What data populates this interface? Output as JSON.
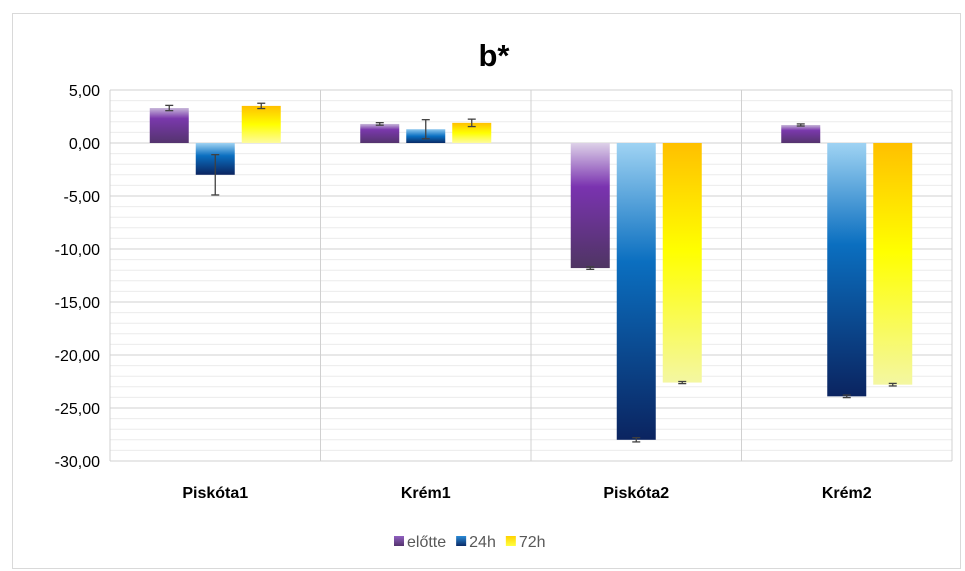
{
  "chart_data": {
    "type": "bar",
    "title": "b*",
    "xlabel": "",
    "ylabel": "",
    "categories": [
      "Piskóta1",
      "Krém1",
      "Piskóta2",
      "Krém2"
    ],
    "ylim": [
      -30,
      5
    ],
    "ytick_step": 5,
    "ytick_labels": [
      "5,00",
      "0,00",
      "-5,00",
      "-10,00",
      "-15,00",
      "-20,00",
      "-25,00",
      "-30,00"
    ],
    "grid": true,
    "legend_position": "bottom",
    "series": [
      {
        "name": "előtte",
        "color": "#7030a0",
        "values": [
          3.3,
          1.8,
          -11.8,
          1.7
        ],
        "errors": [
          0.25,
          0.12,
          0.12,
          0.1
        ]
      },
      {
        "name": "24h",
        "color": "#0070c0",
        "values": [
          -3.0,
          1.3,
          -28.0,
          -23.9
        ],
        "errors": [
          1.9,
          0.9,
          0.2,
          0.12
        ]
      },
      {
        "name": "72h",
        "color": "#ffc000",
        "values": [
          3.5,
          1.9,
          -22.6,
          -22.8
        ],
        "errors": [
          0.25,
          0.35,
          0.1,
          0.12
        ]
      }
    ]
  }
}
